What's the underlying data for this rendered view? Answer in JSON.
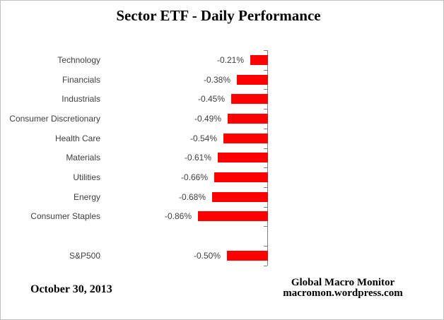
{
  "title": "Sector ETF - Daily Performance",
  "date_label": "October 30, 2013",
  "footer": {
    "line1": "Global Macro Monitor",
    "line2": "macromon.wordpress.com"
  },
  "chart_data": {
    "type": "bar",
    "orientation": "horizontal",
    "title": "Sector ETF - Daily Performance",
    "categories": [
      "Technology",
      "Financials",
      "Industrials",
      "Consumer Discretionary",
      "Health Care",
      "Materials",
      "Utilities",
      "Energy",
      "Consumer Staples",
      "",
      "S&P500"
    ],
    "values": [
      -0.21,
      -0.38,
      -0.45,
      -0.49,
      -0.54,
      -0.61,
      -0.66,
      -0.68,
      -0.86,
      null,
      -0.5
    ],
    "value_labels": [
      "-0.21%",
      "-0.38%",
      "-0.45%",
      "-0.49%",
      "-0.54%",
      "-0.61%",
      "-0.66%",
      "-0.68%",
      "-0.86%",
      "",
      "-0.50%"
    ],
    "unit": "%",
    "xlim": [
      -1.0,
      0
    ],
    "grid": false,
    "legend": false,
    "bar_color": "#FF0000",
    "axis_color": "#808080",
    "label_color": "#404040"
  }
}
